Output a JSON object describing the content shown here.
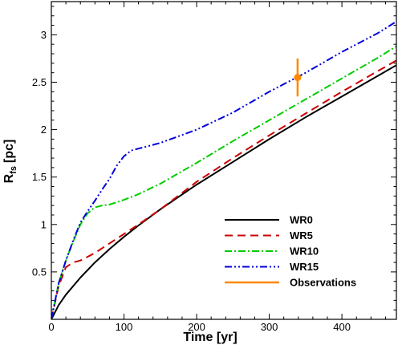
{
  "chart_data": {
    "type": "line",
    "xlabel": "Time [yr]",
    "ylabel_main": "R",
    "ylabel_sub": "fs",
    "ylabel_unit": "[pc]",
    "xlim": [
      0,
      475
    ],
    "ylim": [
      0,
      3.35
    ],
    "xticks": [
      0,
      100,
      200,
      300,
      400
    ],
    "yticks": [
      0.5,
      1,
      1.5,
      2,
      2.5,
      3
    ],
    "ytick_labels": [
      "0.5",
      "1",
      "1.5",
      "2",
      "2.5",
      "3"
    ],
    "legend_position": "bottom-right",
    "series": [
      {
        "name": "WR0",
        "color": "#000000",
        "dash": "solid",
        "x": [
          0,
          10,
          20,
          40,
          60,
          80,
          100,
          120,
          150,
          200,
          250,
          300,
          350,
          400,
          450,
          475
        ],
        "y": [
          0,
          0.15,
          0.26,
          0.44,
          0.6,
          0.74,
          0.87,
          0.99,
          1.16,
          1.42,
          1.66,
          1.9,
          2.13,
          2.35,
          2.57,
          2.68
        ]
      },
      {
        "name": "WR5",
        "color": "#cc0000",
        "dash": "dashed",
        "x": [
          0,
          10,
          20,
          30,
          40,
          50,
          60,
          80,
          100,
          120,
          150,
          200,
          250,
          300,
          350,
          400,
          450,
          475
        ],
        "y": [
          0,
          0.35,
          0.55,
          0.6,
          0.62,
          0.66,
          0.7,
          0.8,
          0.9,
          1.0,
          1.16,
          1.45,
          1.7,
          1.94,
          2.17,
          2.4,
          2.62,
          2.73
        ]
      },
      {
        "name": "WR10",
        "color": "#00cc00",
        "dash": "dashdot",
        "x": [
          0,
          10,
          20,
          30,
          40,
          50,
          60,
          70,
          80,
          100,
          120,
          150,
          200,
          250,
          300,
          350,
          400,
          450,
          475
        ],
        "y": [
          0,
          0.38,
          0.62,
          0.82,
          1.0,
          1.12,
          1.18,
          1.2,
          1.21,
          1.26,
          1.32,
          1.43,
          1.65,
          1.88,
          2.1,
          2.32,
          2.54,
          2.76,
          2.88
        ]
      },
      {
        "name": "WR15",
        "color": "#0000dd",
        "dash": "dashdotdot",
        "x": [
          0,
          10,
          20,
          30,
          40,
          50,
          60,
          70,
          80,
          90,
          100,
          110,
          120,
          130,
          150,
          200,
          250,
          300,
          350,
          400,
          450,
          475
        ],
        "y": [
          0,
          0.38,
          0.62,
          0.83,
          1.02,
          1.14,
          1.25,
          1.37,
          1.48,
          1.62,
          1.72,
          1.78,
          1.8,
          1.82,
          1.86,
          2.0,
          2.18,
          2.4,
          2.6,
          2.82,
          3.02,
          3.14
        ]
      }
    ],
    "observations": {
      "name": "Observations",
      "color": "#ff8800",
      "x": 339,
      "y": 2.55,
      "yerr_low": 2.35,
      "yerr_high": 2.75
    }
  }
}
